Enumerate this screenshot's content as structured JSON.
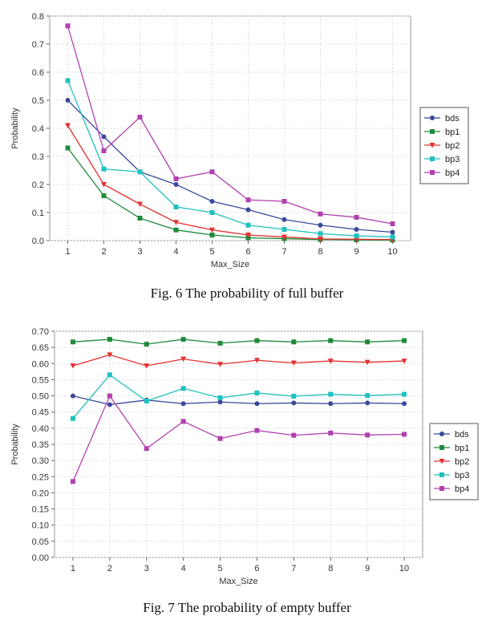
{
  "figures": [
    {
      "caption": "Fig. 6 The probability of full buffer"
    },
    {
      "caption": "Fig. 7 The probability of empty buffer"
    }
  ],
  "chart_data": [
    {
      "type": "line",
      "title": "",
      "xlabel": "Max_Size",
      "ylabel": "Probability",
      "x": [
        1,
        2,
        3,
        4,
        5,
        6,
        7,
        8,
        9,
        10
      ],
      "xlim": [
        0.5,
        10.5
      ],
      "ylim": [
        0,
        0.8
      ],
      "yticks": [
        0.0,
        0.1,
        0.2,
        0.3,
        0.4,
        0.5,
        0.6,
        0.7,
        0.8
      ],
      "ytick_labels": [
        "0.0",
        "0.1",
        "0.2",
        "0.3",
        "0.4",
        "0.5",
        "0.6",
        "0.7",
        "0.8"
      ],
      "grid": true,
      "legend_position": "right",
      "series": [
        {
          "name": "bds",
          "color": "#3a4a9a",
          "marker": "circle",
          "values": [
            0.5,
            0.37,
            0.245,
            0.2,
            0.14,
            0.11,
            0.075,
            0.055,
            0.04,
            0.03
          ]
        },
        {
          "name": "bp1",
          "color": "#1f8a3a",
          "marker": "square",
          "values": [
            0.33,
            0.16,
            0.08,
            0.038,
            0.02,
            0.01,
            0.007,
            0.004,
            0.003,
            0.002
          ]
        },
        {
          "name": "bp2",
          "color": "#e53030",
          "marker": "triangle-down",
          "values": [
            0.41,
            0.2,
            0.13,
            0.065,
            0.038,
            0.02,
            0.013,
            0.006,
            0.005,
            0.004
          ]
        },
        {
          "name": "bp3",
          "color": "#20c0c0",
          "marker": "square",
          "values": [
            0.57,
            0.255,
            0.245,
            0.12,
            0.1,
            0.055,
            0.04,
            0.025,
            0.017,
            0.013
          ]
        },
        {
          "name": "bp4",
          "color": "#b040b0",
          "marker": "square",
          "values": [
            0.765,
            0.32,
            0.44,
            0.22,
            0.245,
            0.145,
            0.14,
            0.095,
            0.083,
            0.06
          ]
        }
      ]
    },
    {
      "type": "line",
      "title": "",
      "xlabel": "Max_Size",
      "ylabel": "Probability",
      "x": [
        1,
        2,
        3,
        4,
        5,
        6,
        7,
        8,
        9,
        10
      ],
      "xlim": [
        0.5,
        10.5
      ],
      "ylim": [
        0,
        0.7
      ],
      "yticks": [
        0.0,
        0.05,
        0.1,
        0.15,
        0.2,
        0.25,
        0.3,
        0.35,
        0.4,
        0.45,
        0.5,
        0.55,
        0.6,
        0.65,
        0.7
      ],
      "ytick_labels": [
        "0.00",
        "0.05",
        "0.10",
        "0.15",
        "0.20",
        "0.25",
        "0.30",
        "0.35",
        "0.40",
        "0.45",
        "0.50",
        "0.55",
        "0.60",
        "0.65",
        "0.70"
      ],
      "grid": true,
      "legend_position": "right",
      "series": [
        {
          "name": "bds",
          "color": "#3a4a9a",
          "marker": "circle",
          "values": [
            0.5,
            0.473,
            0.487,
            0.476,
            0.481,
            0.476,
            0.478,
            0.476,
            0.478,
            0.476
          ]
        },
        {
          "name": "bp1",
          "color": "#1f8a3a",
          "marker": "square",
          "values": [
            0.667,
            0.675,
            0.66,
            0.675,
            0.663,
            0.671,
            0.667,
            0.671,
            0.667,
            0.671
          ]
        },
        {
          "name": "bp2",
          "color": "#e53030",
          "marker": "triangle-down",
          "values": [
            0.593,
            0.627,
            0.593,
            0.614,
            0.598,
            0.61,
            0.602,
            0.608,
            0.604,
            0.608
          ]
        },
        {
          "name": "bp3",
          "color": "#20c0c0",
          "marker": "square",
          "values": [
            0.43,
            0.565,
            0.484,
            0.523,
            0.494,
            0.509,
            0.499,
            0.505,
            0.501,
            0.505
          ]
        },
        {
          "name": "bp4",
          "color": "#b040b0",
          "marker": "square",
          "values": [
            0.235,
            0.5,
            0.337,
            0.421,
            0.368,
            0.393,
            0.378,
            0.385,
            0.379,
            0.381
          ]
        }
      ]
    }
  ]
}
